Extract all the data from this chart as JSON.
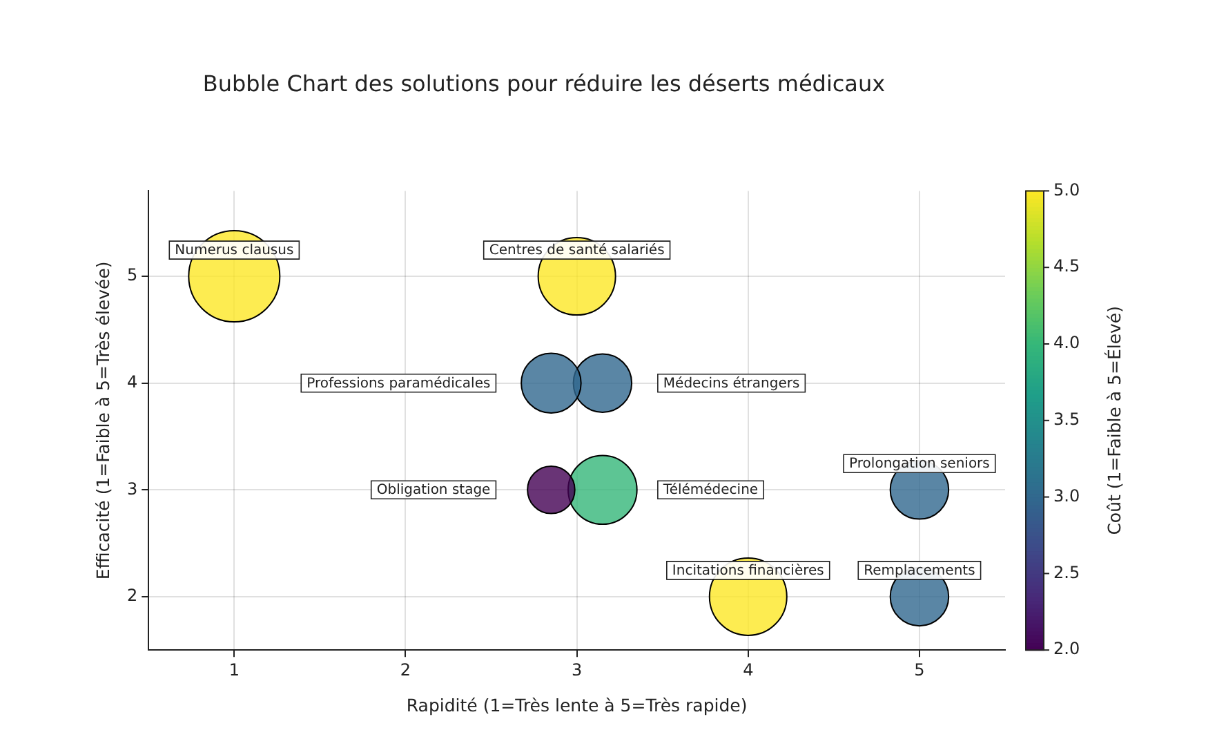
{
  "chart_data": {
    "type": "bubble",
    "title": "Bubble Chart des solutions pour réduire les déserts médicaux",
    "xlabel": "Rapidité (1=Très lente à 5=Très rapide)",
    "ylabel": "Efficacité (1=Faible à 5=Très élevée)",
    "clabel": "Coût (1=Faible à 5=Élevé)",
    "series": [
      {
        "name": "Numerus clausus",
        "x": [
          1
        ],
        "values": [
          5
        ],
        "sizes": [
          1
        ],
        "cvalues": [
          5
        ]
      },
      {
        "name": "Centres de santé salariés",
        "x": [
          3
        ],
        "values": [
          5
        ],
        "sizes": [
          0.72
        ],
        "cvalues": [
          5
        ]
      },
      {
        "name": "Professions paramédicales",
        "x": [
          2.85
        ],
        "values": [
          4
        ],
        "sizes": [
          0.43
        ],
        "cvalues": [
          3
        ]
      },
      {
        "name": "Médecins étrangers",
        "x": [
          3.15
        ],
        "values": [
          4
        ],
        "sizes": [
          0.41
        ],
        "cvalues": [
          3
        ]
      },
      {
        "name": "Obligation stage",
        "x": [
          2.85
        ],
        "values": [
          3
        ],
        "sizes": [
          0.27
        ],
        "cvalues": [
          2
        ]
      },
      {
        "name": "Télémédecine",
        "x": [
          3.15
        ],
        "values": [
          3
        ],
        "sizes": [
          0.57
        ],
        "cvalues": [
          4
        ]
      },
      {
        "name": "Prolongation seniors",
        "x": [
          5
        ],
        "values": [
          3
        ],
        "sizes": [
          0.41
        ],
        "cvalues": [
          3
        ]
      },
      {
        "name": "Incitations financières",
        "x": [
          4
        ],
        "values": [
          2
        ],
        "sizes": [
          0.72
        ],
        "cvalues": [
          5
        ]
      },
      {
        "name": "Remplacements",
        "x": [
          5
        ],
        "values": [
          2
        ],
        "sizes": [
          0.41
        ],
        "cvalues": [
          3
        ]
      }
    ],
    "clim": [
      2,
      5
    ],
    "cticks": [
      {
        "value": 2,
        "label": "2.0"
      },
      {
        "value": 2.5,
        "label": "2.5"
      },
      {
        "value": 3,
        "label": "3.0"
      },
      {
        "value": 3.5,
        "label": "3.5"
      },
      {
        "value": 4,
        "label": "4.0"
      },
      {
        "value": 4.5,
        "label": "4.5"
      },
      {
        "value": 5,
        "label": "5.0"
      }
    ],
    "xlim": [
      0.5,
      5.5
    ],
    "xticks": [
      1,
      2,
      3,
      4,
      5
    ],
    "ylim": [
      1.5,
      5.8
    ],
    "yticks": [
      2,
      3,
      4,
      5
    ],
    "grid": true
  }
}
